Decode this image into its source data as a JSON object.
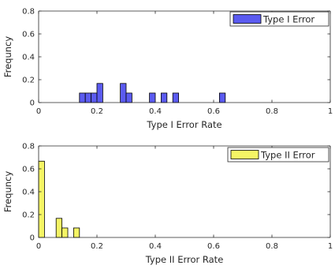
{
  "chart_data": [
    {
      "type": "bar",
      "bar_color": "#5b5bf0",
      "xlabel": "Type I Error Rate",
      "ylabel": "Frequncy",
      "legend": "Type I Error",
      "legend_position": "top-right",
      "xlim": [
        0,
        1
      ],
      "ylim": [
        0,
        0.8
      ],
      "xticks": [
        "0",
        "0.2",
        "0.4",
        "0.6",
        "0.8",
        "1"
      ],
      "yticks": [
        "0",
        "0.2",
        "0.4",
        "0.6",
        "0.8"
      ],
      "bin_width": 0.02,
      "x": [
        0.15,
        0.17,
        0.19,
        0.21,
        0.29,
        0.31,
        0.39,
        0.43,
        0.47,
        0.63
      ],
      "values": [
        0.083,
        0.083,
        0.083,
        0.167,
        0.167,
        0.083,
        0.083,
        0.083,
        0.083,
        0.083
      ]
    },
    {
      "type": "bar",
      "bar_color": "#f5f565",
      "xlabel": "Type II Error Rate",
      "ylabel": "Frequncy",
      "legend": "Type II Error",
      "legend_position": "top-right",
      "xlim": [
        0,
        1
      ],
      "ylim": [
        0,
        0.8
      ],
      "xticks": [
        "0",
        "0.2",
        "0.4",
        "0.6",
        "0.8",
        "1"
      ],
      "yticks": [
        "0",
        "0.2",
        "0.4",
        "0.6",
        "0.8"
      ],
      "bin_width": 0.02,
      "x": [
        0.01,
        0.07,
        0.09,
        0.13
      ],
      "values": [
        0.667,
        0.167,
        0.083,
        0.083
      ]
    }
  ]
}
